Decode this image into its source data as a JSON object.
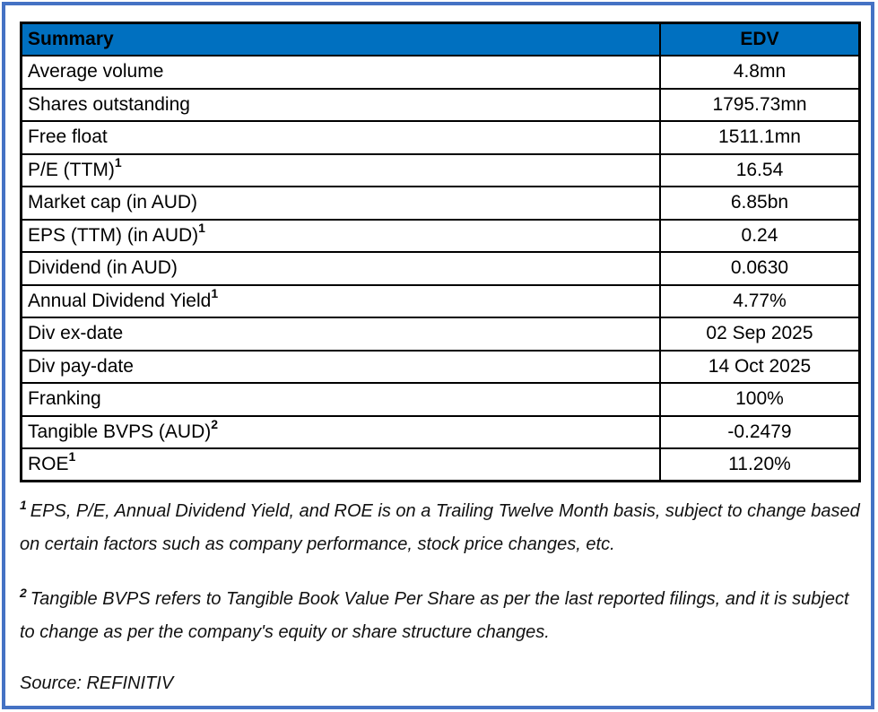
{
  "colors": {
    "header_bg": "#0070C0",
    "header_text": "#ffffff",
    "frame_border": "#4472C4",
    "table_border": "#000000",
    "body_text": "#000000"
  },
  "table": {
    "header": {
      "left": "Summary",
      "right": "EDV"
    },
    "rows": [
      {
        "label": "Average volume",
        "sup": "",
        "value": "4.8mn"
      },
      {
        "label": "Shares outstanding",
        "sup": "",
        "value": "1795.73mn"
      },
      {
        "label": "Free float",
        "sup": "",
        "value": "1511.1mn"
      },
      {
        "label": "P/E (TTM)",
        "sup": "1",
        "value": "16.54"
      },
      {
        "label": "Market cap (in AUD)",
        "sup": "",
        "value": "6.85bn"
      },
      {
        "label": "EPS (TTM) (in AUD)",
        "sup": "1",
        "value": "0.24"
      },
      {
        "label": "Dividend (in AUD)",
        "sup": "",
        "value": "0.0630"
      },
      {
        "label": "Annual Dividend Yield",
        "sup": "1",
        "value": "4.77%"
      },
      {
        "label": "Div ex-date",
        "sup": "",
        "value": "02 Sep 2025"
      },
      {
        "label": "Div pay-date",
        "sup": "",
        "value": "14 Oct 2025"
      },
      {
        "label": "Franking",
        "sup": "",
        "value": "100%"
      },
      {
        "label": "Tangible BVPS (AUD)",
        "sup": "2",
        "value": "-0.2479"
      },
      {
        "label": "ROE",
        "sup": "1",
        "value": "11.20%"
      }
    ]
  },
  "footnotes": [
    {
      "sup": "1",
      "text": "EPS, P/E, Annual Dividend Yield, and ROE is on a Trailing Twelve Month basis, subject to change based on certain factors such as company performance, stock price changes, etc."
    },
    {
      "sup": "2",
      "text": "Tangible BVPS refers to Tangible Book Value Per Share as per the last reported filings, and it is subject to change as per the company's equity or share structure changes."
    }
  ],
  "source": "Source: REFINITIV"
}
